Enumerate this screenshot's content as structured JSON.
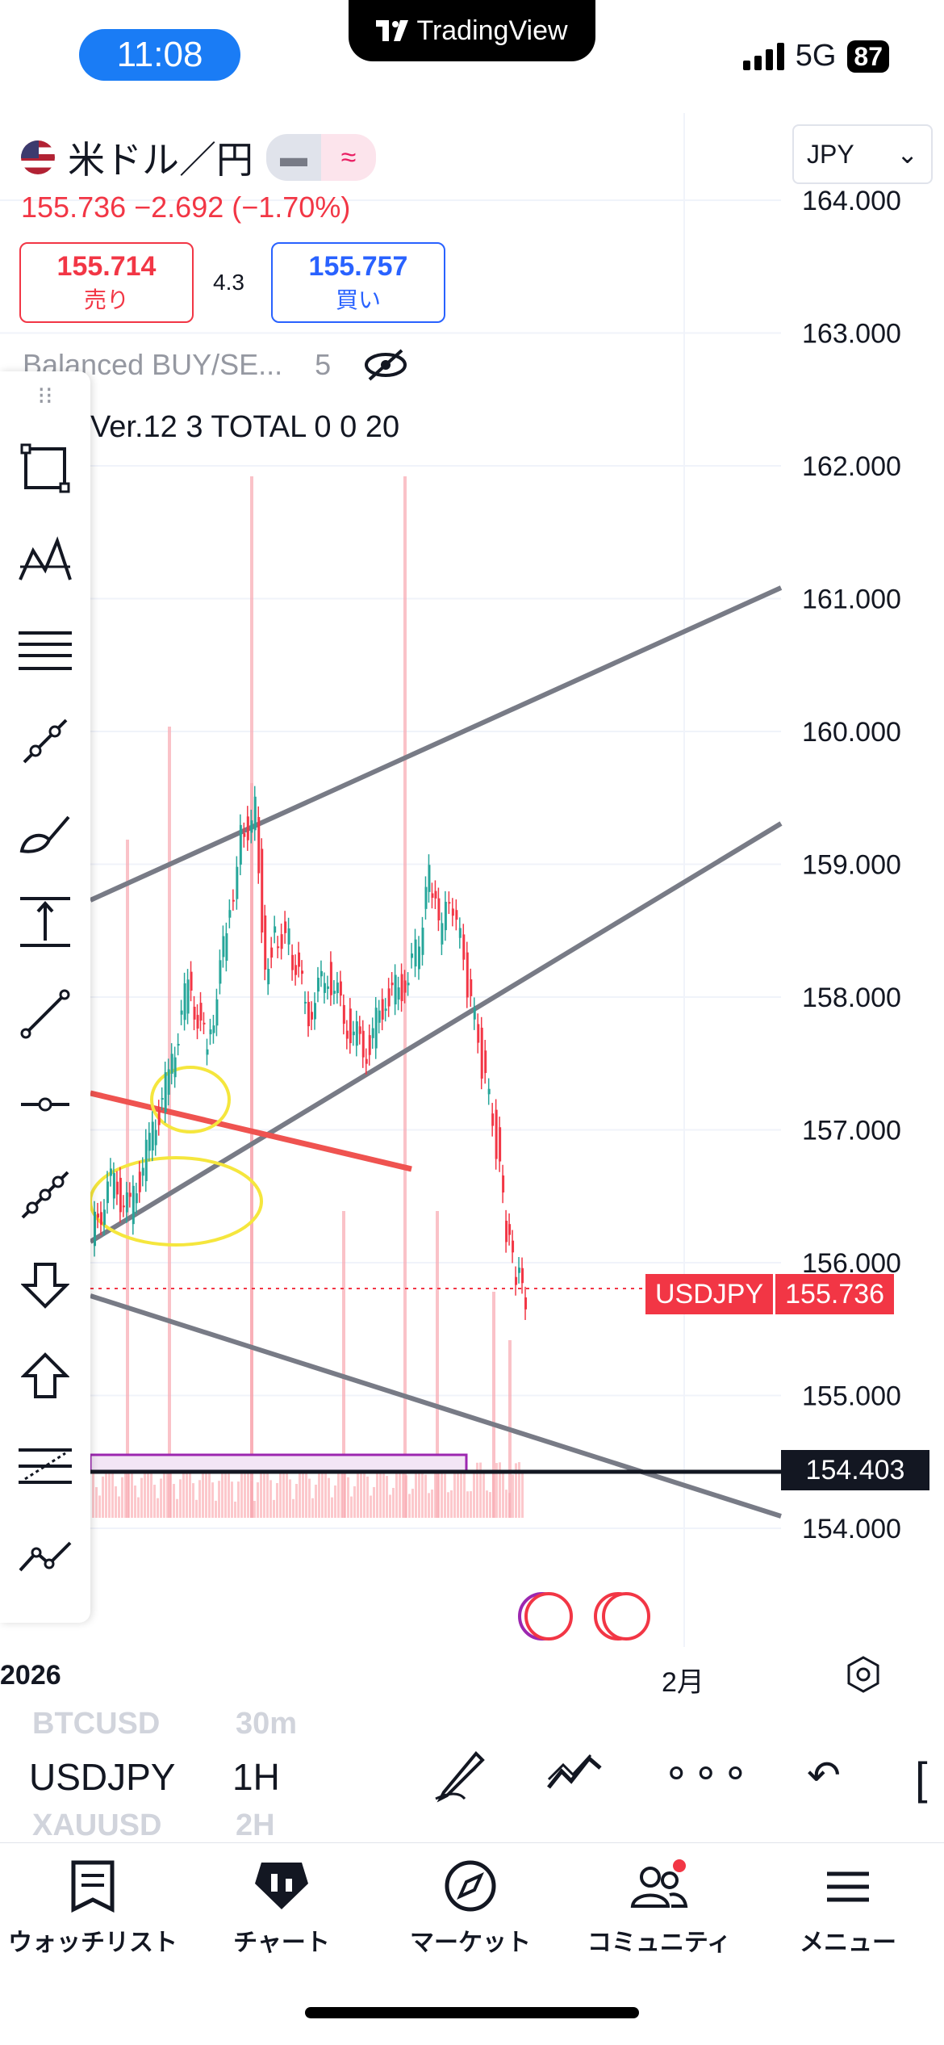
{
  "status_bar": {
    "time": "11:08",
    "app_badge": "TradingView",
    "network": "5G",
    "battery": "87"
  },
  "header": {
    "symbol_name": "米ドル／円",
    "price_change": "155.736 −2.692 (−1.70%)",
    "sell": {
      "price": "155.714",
      "label": "売り"
    },
    "spread": "4.3",
    "buy": {
      "price": "155.757",
      "label": "買い"
    },
    "currency": "JPY",
    "indicator_1_name": "Balanced BUY/SE...",
    "indicator_1_value": "5",
    "indicator_2": "Ver.12 3 TOTAL 0 0 20"
  },
  "chart_data": {
    "type": "line",
    "title": "USDJPY",
    "yaxis_ticks": [
      "164.000",
      "163.000",
      "162.000",
      "161.000",
      "160.000",
      "159.000",
      "158.000",
      "157.000",
      "156.000",
      "155.000",
      "154.000"
    ],
    "ylim": [
      153.9,
      164.1
    ],
    "xaxis_labels": [
      "2026",
      "2月"
    ],
    "series": [
      {
        "name": "USDJPY",
        "x": [
          0,
          8,
          16,
          24,
          32,
          40,
          48,
          56,
          62,
          68,
          72,
          76,
          82,
          90,
          98,
          106,
          114,
          122,
          130,
          136,
          140,
          144,
          150,
          156,
          162,
          168,
          172,
          176,
          180
        ],
        "values": [
          156.2,
          156.6,
          156.4,
          156.9,
          157.4,
          158.1,
          157.6,
          158.5,
          159.2,
          159.4,
          158.2,
          158.5,
          158.4,
          157.9,
          158.2,
          157.8,
          157.6,
          158.0,
          158.1,
          158.4,
          158.9,
          158.5,
          158.7,
          158.1,
          157.5,
          156.9,
          156.2,
          155.9,
          155.736
        ]
      }
    ],
    "last_price_label": "USDJPY",
    "last_price": "155.736",
    "horizontal_level": "154.403"
  },
  "toolbar": {
    "tools": [
      "rectangle-icon",
      "pattern-icon",
      "fib-retracement-icon",
      "path-icon",
      "brush-icon",
      "measure-icon",
      "trend-line-icon",
      "horizontal-ray-icon",
      "polyline-icon",
      "arrow-down-icon",
      "arrow-up-icon",
      "regression-icon",
      "forecast-icon"
    ]
  },
  "bottom": {
    "ghost_top_symbol": "BTCUSD",
    "ghost_top_interval": "30m",
    "symbol": "USDJPY",
    "interval": "1H",
    "ghost_bottom_symbol": "XAUUSD",
    "ghost_bottom_interval": "2H"
  },
  "nav": {
    "watchlist": "ウォッチリスト",
    "chart": "チャート",
    "market": "マーケット",
    "community": "コミュニティ",
    "menu": "メニュー"
  },
  "colors": {
    "up": "#26a69a",
    "down": "#f23645",
    "accent": "#2962ff",
    "channel": "#787b86"
  }
}
